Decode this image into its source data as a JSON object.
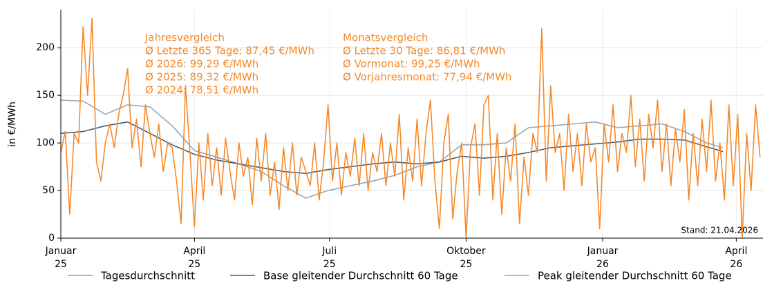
{
  "chart_data": {
    "type": "line",
    "ylabel": "in €/MWh",
    "xlim": [
      0,
      473
    ],
    "xticks": [
      {
        "value": 0,
        "label": "Januar 25"
      },
      {
        "value": 90,
        "label": "April 25"
      },
      {
        "value": 181,
        "label": "Juli 25"
      },
      {
        "value": 273,
        "label": "Oktober 25"
      },
      {
        "value": 365,
        "label": "Januar 26"
      },
      {
        "value": 455,
        "label": "April 26"
      }
    ],
    "ylim": [
      0,
      240
    ],
    "yticks": [
      0,
      50,
      100,
      150,
      200
    ],
    "grid": true,
    "legend": "bottom",
    "annotations": [
      [
        "Jahresvergleich",
        "Ø Letzte 365 Tage: 87,45 €/MWh",
        "Ø 2026: 99,29 €/MWh",
        "Ø 2025: 89,32 €/MWh",
        "Ø 2024: 78,51 €/MWh"
      ],
      [
        "Monatsvergleich",
        "Ø Letzte 30 Tage: 86,81 €/MWh",
        "Ø Vormonat: 99,25 €/MWh",
        "Ø Vorjahresmonat: 77,94 €/MWh"
      ]
    ],
    "note": "Stand: 21.04.2026",
    "series": [
      {
        "name": "Tagesdurchschnitt",
        "color": "#f5892a",
        "x": [
          0,
          3,
          6,
          9,
          12,
          15,
          18,
          21,
          24,
          27,
          30,
          33,
          36,
          39,
          42,
          45,
          48,
          51,
          54,
          57,
          60,
          63,
          66,
          69,
          72,
          75,
          78,
          81,
          84,
          87,
          90,
          93,
          96,
          99,
          102,
          105,
          108,
          111,
          114,
          117,
          120,
          123,
          126,
          129,
          132,
          135,
          138,
          141,
          144,
          147,
          150,
          153,
          156,
          159,
          162,
          165,
          168,
          171,
          174,
          177,
          180,
          183,
          186,
          189,
          192,
          195,
          198,
          201,
          204,
          207,
          210,
          213,
          216,
          219,
          222,
          225,
          228,
          231,
          234,
          237,
          240,
          243,
          246,
          249,
          252,
          255,
          258,
          261,
          264,
          267,
          270,
          273,
          276,
          279,
          282,
          285,
          288,
          291,
          294,
          297,
          300,
          303,
          306,
          309,
          312,
          315,
          318,
          321,
          324,
          327,
          330,
          333,
          336,
          339,
          342,
          345,
          348,
          351,
          354,
          357,
          360,
          363,
          366,
          369,
          372,
          375,
          378,
          381,
          384,
          387,
          390,
          393,
          396,
          399,
          402,
          405,
          408,
          411,
          414,
          417,
          420,
          423,
          426,
          429,
          432,
          435,
          438,
          441,
          444,
          447,
          450,
          453,
          456,
          459,
          462,
          465,
          468,
          471
        ],
        "values": [
          90,
          112,
          25,
          110,
          100,
          222,
          150,
          231,
          80,
          60,
          100,
          120,
          95,
          130,
          150,
          178,
          95,
          125,
          75,
          140,
          110,
          85,
          120,
          70,
          100,
          95,
          60,
          15,
          160,
          90,
          12,
          100,
          40,
          110,
          55,
          95,
          45,
          105,
          70,
          40,
          100,
          65,
          85,
          35,
          105,
          60,
          110,
          45,
          80,
          30,
          95,
          50,
          100,
          45,
          85,
          70,
          55,
          100,
          40,
          80,
          140,
          60,
          100,
          45,
          90,
          65,
          105,
          55,
          110,
          50,
          90,
          70,
          110,
          55,
          100,
          65,
          130,
          40,
          95,
          60,
          125,
          55,
          110,
          145,
          60,
          10,
          100,
          130,
          20,
          70,
          100,
          0,
          95,
          120,
          45,
          140,
          150,
          40,
          110,
          25,
          95,
          60,
          120,
          15,
          85,
          45,
          110,
          90,
          220,
          60,
          160,
          90,
          110,
          50,
          130,
          70,
          110,
          55,
          120,
          80,
          95,
          10,
          120,
          80,
          140,
          70,
          110,
          90,
          150,
          75,
          125,
          60,
          130,
          95,
          145,
          70,
          120,
          55,
          115,
          80,
          135,
          40,
          110,
          55,
          125,
          70,
          145,
          60,
          100,
          40,
          140,
          55,
          130,
          0,
          110,
          50,
          140,
          85
        ]
      },
      {
        "name": "Base gleitender Durchschnitt 60 Tage",
        "color": "#4a5b6e",
        "x": [
          0,
          15,
          30,
          45,
          60,
          75,
          90,
          105,
          120,
          135,
          150,
          165,
          180,
          195,
          210,
          225,
          240,
          255,
          270,
          285,
          300,
          315,
          330,
          345,
          360,
          375,
          390,
          405,
          420,
          435,
          446
        ],
        "values": [
          110,
          112,
          118,
          122,
          110,
          98,
          88,
          82,
          78,
          74,
          70,
          68,
          72,
          75,
          78,
          80,
          78,
          80,
          86,
          84,
          86,
          90,
          95,
          97,
          99,
          101,
          104,
          104,
          103,
          96,
          91
        ]
      },
      {
        "name": "Peak gleitender Durchschnitt 60 Tage",
        "color": "#9aa5b1",
        "x": [
          0,
          15,
          30,
          45,
          60,
          75,
          90,
          105,
          120,
          135,
          150,
          165,
          180,
          195,
          210,
          225,
          240,
          255,
          270,
          285,
          300,
          315,
          330,
          345,
          360,
          375,
          390,
          405,
          420,
          435,
          446
        ],
        "values": [
          145,
          144,
          130,
          140,
          138,
          118,
          92,
          85,
          78,
          70,
          55,
          42,
          50,
          55,
          60,
          66,
          75,
          80,
          98,
          98,
          100,
          116,
          118,
          120,
          122,
          116,
          118,
          120,
          112,
          100,
          95
        ]
      }
    ]
  }
}
